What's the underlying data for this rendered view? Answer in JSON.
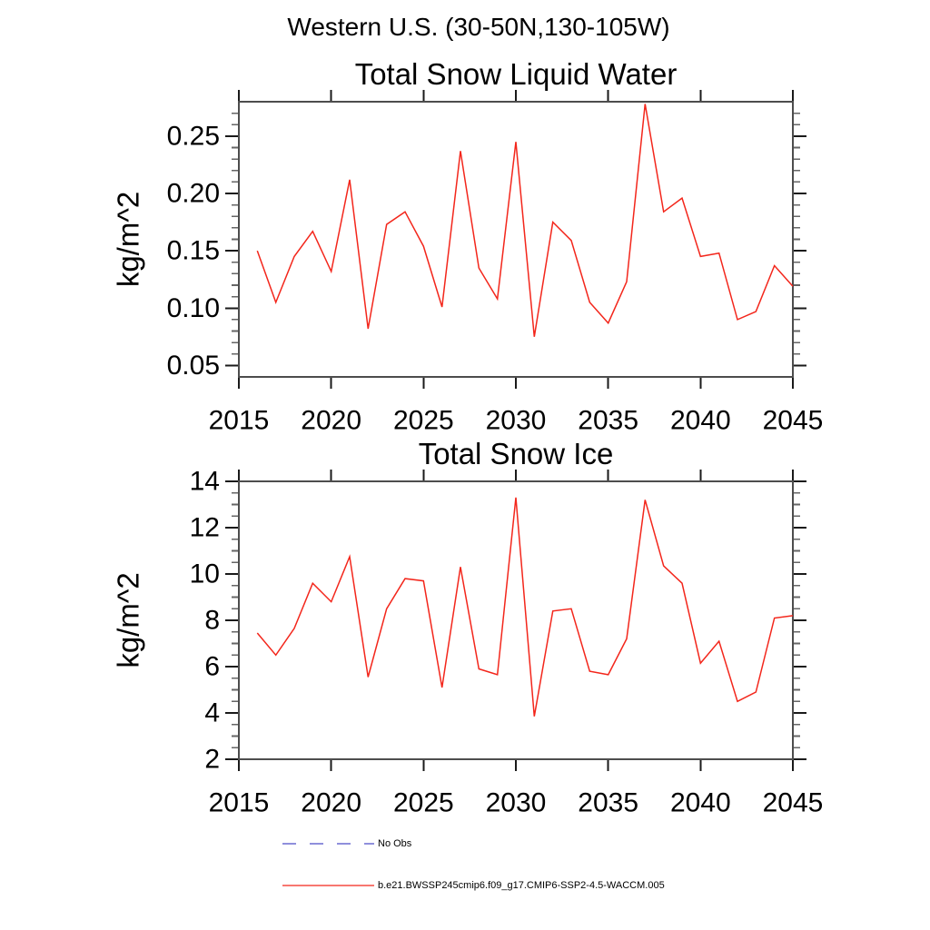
{
  "header": {
    "main_title": "Western U.S. (30-50N,130-105W)"
  },
  "colors": {
    "series_red": "#f3261b",
    "no_obs_blue": "#6a6ad1",
    "frame": "#4d4d4d",
    "major_tick": "#1a1a1a",
    "minor_tick": "#666666",
    "text": "#000000"
  },
  "legend": {
    "items": [
      {
        "label": "No Obs",
        "style": "dashed",
        "color": "#6a6ad1"
      },
      {
        "label": "b.e21.BWSSP245cmip6.f09_g17.CMIP6-SSP2-4.5-WACCM.005",
        "style": "solid",
        "color": "#f3261b"
      }
    ]
  },
  "chart_data": [
    {
      "type": "line",
      "title": "Total Snow Liquid Water",
      "ylabel": "kg/m^2",
      "xlabel": "",
      "grid": false,
      "xlim": [
        2015,
        2045
      ],
      "ylim": [
        0.04,
        0.28
      ],
      "xticks": [
        2015,
        2020,
        2025,
        2030,
        2035,
        2040,
        2045
      ],
      "yticks": [
        0.05,
        0.1,
        0.15,
        0.2,
        0.25
      ],
      "ytick_labels": [
        "0.05",
        "0.10",
        "0.15",
        "0.20",
        "0.25"
      ],
      "y_minor_step": 0.01,
      "series": [
        {
          "name": "b.e21.BWSSP245cmip6.f09_g17.CMIP6-SSP2-4.5-WACCM.005",
          "color": "#f3261b",
          "x": [
            2016,
            2017,
            2018,
            2019,
            2020,
            2021,
            2022,
            2023,
            2024,
            2025,
            2026,
            2027,
            2028,
            2029,
            2030,
            2031,
            2032,
            2033,
            2034,
            2035,
            2036,
            2037,
            2038,
            2039,
            2040,
            2041,
            2042,
            2043,
            2044,
            2045
          ],
          "y": [
            0.15,
            0.105,
            0.145,
            0.167,
            0.132,
            0.212,
            0.082,
            0.173,
            0.184,
            0.154,
            0.101,
            0.237,
            0.135,
            0.108,
            0.245,
            0.075,
            0.175,
            0.159,
            0.105,
            0.087,
            0.123,
            0.278,
            0.184,
            0.196,
            0.145,
            0.148,
            0.09,
            0.097,
            0.137,
            0.119
          ]
        }
      ]
    },
    {
      "type": "line",
      "title": "Total Snow Ice",
      "ylabel": "kg/m^2",
      "xlabel": "",
      "grid": false,
      "xlim": [
        2015,
        2045
      ],
      "ylim": [
        2,
        14
      ],
      "xticks": [
        2015,
        2020,
        2025,
        2030,
        2035,
        2040,
        2045
      ],
      "yticks": [
        2,
        4,
        6,
        8,
        10,
        12,
        14
      ],
      "ytick_labels": [
        "2",
        "4",
        "6",
        "8",
        "10",
        "12",
        "14"
      ],
      "y_minor_step": 0.5,
      "series": [
        {
          "name": "b.e21.BWSSP245cmip6.f09_g17.CMIP6-SSP2-4.5-WACCM.005",
          "color": "#f3261b",
          "x": [
            2016,
            2017,
            2018,
            2019,
            2020,
            2021,
            2022,
            2023,
            2024,
            2025,
            2026,
            2027,
            2028,
            2029,
            2030,
            2031,
            2032,
            2033,
            2034,
            2035,
            2036,
            2037,
            2038,
            2039,
            2040,
            2041,
            2042,
            2043,
            2044,
            2045
          ],
          "y": [
            7.45,
            6.5,
            7.65,
            9.6,
            8.8,
            10.75,
            5.55,
            8.5,
            9.8,
            9.7,
            5.1,
            10.3,
            5.9,
            5.65,
            13.3,
            3.85,
            8.4,
            8.5,
            5.8,
            5.65,
            7.2,
            13.2,
            10.35,
            9.6,
            6.15,
            7.1,
            4.5,
            4.9,
            8.1,
            8.2
          ]
        }
      ]
    }
  ]
}
